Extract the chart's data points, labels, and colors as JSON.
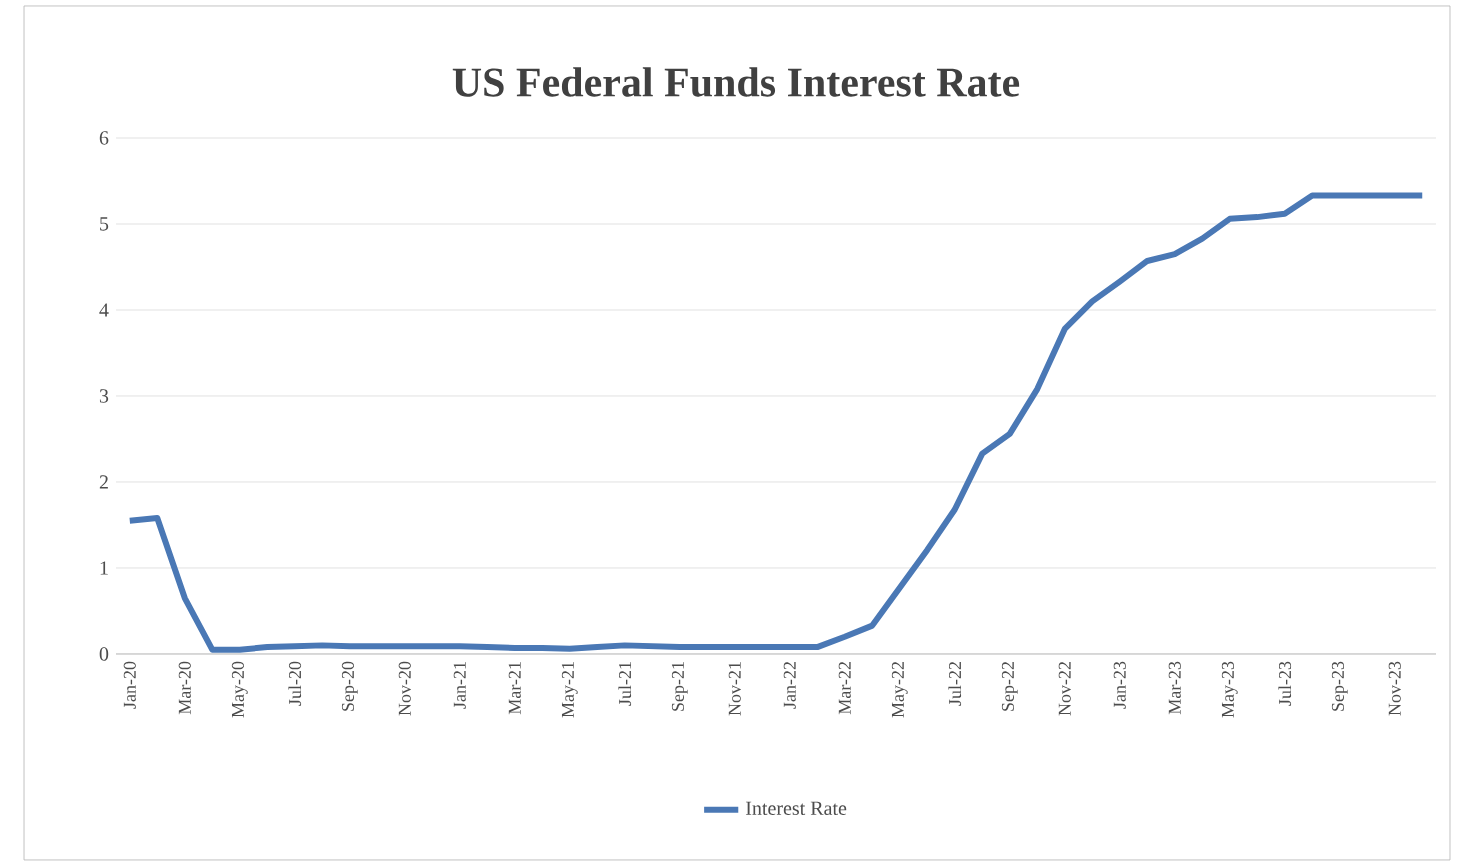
{
  "chart_data": {
    "type": "line",
    "title": "US Federal Funds Interest Rate",
    "categories": [
      "Jan-20",
      null,
      "Mar-20",
      null,
      "May-20",
      null,
      "Jul-20",
      null,
      "Sep-20",
      null,
      "Nov-20",
      null,
      "Jan-21",
      null,
      "Mar-21",
      null,
      "May-21",
      null,
      "Jul-21",
      null,
      "Sep-21",
      null,
      "Nov-21",
      null,
      "Jan-22",
      null,
      "Mar-22",
      null,
      "May-22",
      null,
      "Jul-22",
      null,
      "Sep-22",
      null,
      "Nov-22",
      null,
      "Jan-23",
      null,
      "Mar-23",
      null,
      "May-23",
      null,
      "Jul-23",
      null,
      "Sep-23",
      null,
      "Nov-23",
      null
    ],
    "series": [
      {
        "name": "Interest Rate",
        "color": "#4a78b5",
        "values": [
          1.55,
          1.58,
          0.65,
          0.05,
          0.05,
          0.08,
          0.09,
          0.1,
          0.09,
          0.09,
          0.09,
          0.09,
          0.09,
          0.08,
          0.07,
          0.07,
          0.06,
          0.08,
          0.1,
          0.09,
          0.08,
          0.08,
          0.08,
          0.08,
          0.08,
          0.08,
          0.2,
          0.33,
          0.77,
          1.21,
          1.68,
          2.33,
          2.56,
          3.08,
          3.78,
          4.1,
          4.33,
          4.57,
          4.65,
          4.83,
          5.06,
          5.08,
          5.12,
          5.33,
          5.33,
          5.33,
          5.33,
          5.33
        ]
      }
    ],
    "ylim": [
      0,
      6
    ],
    "yticks": [
      0,
      1,
      2,
      3,
      4,
      5,
      6
    ],
    "grid": "y",
    "legend": "bottom"
  }
}
